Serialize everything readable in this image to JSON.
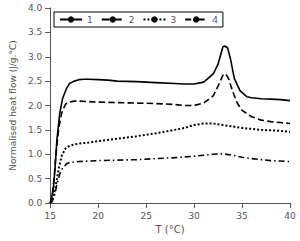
{
  "chart_data": {
    "type": "line",
    "xlabel": "T (°C)",
    "ylabel": "Normalised heat flow (J/g.°C)",
    "xlim": [
      15,
      40
    ],
    "ylim": [
      0,
      4
    ],
    "xticks": [
      15,
      20,
      25,
      30,
      35,
      40
    ],
    "yticks": [
      {
        "value": 0,
        "label": "0.0"
      },
      0.5,
      {
        "value": 1,
        "label": "1.0"
      },
      1.5,
      {
        "value": 2,
        "label": "2.0"
      },
      2.5,
      {
        "value": 3,
        "label": "3.0"
      },
      3.5,
      {
        "value": 4,
        "label": "4.0"
      }
    ],
    "grid": false,
    "legend": "upper left",
    "series": [
      {
        "name": "1",
        "color": "#000000",
        "line_style": "solid",
        "x": [
          15,
          15.3,
          15.5,
          15.7,
          16.0,
          16.3,
          16.7,
          17.0,
          17.5,
          18.0,
          18.5,
          19,
          20,
          21,
          22,
          24,
          26,
          28,
          29,
          30,
          31,
          32,
          32.5,
          33.0,
          33.2,
          33.5,
          33.8,
          34.2,
          34.8,
          35.5,
          36,
          37,
          38,
          39,
          40
        ],
        "values": [
          0.0,
          0.25,
          0.7,
          1.3,
          1.85,
          2.15,
          2.35,
          2.45,
          2.5,
          2.53,
          2.54,
          2.54,
          2.53,
          2.52,
          2.5,
          2.49,
          2.47,
          2.45,
          2.44,
          2.44,
          2.48,
          2.65,
          2.85,
          3.2,
          3.22,
          3.18,
          2.95,
          2.55,
          2.3,
          2.18,
          2.16,
          2.14,
          2.13,
          2.12,
          2.1
        ]
      },
      {
        "name": "2",
        "color": "#000000",
        "line_style": "dashed",
        "x": [
          15,
          15.2,
          15.4,
          15.6,
          15.9,
          16.2,
          16.6,
          17.0,
          17.5,
          18,
          19,
          20,
          22,
          24,
          26,
          28,
          29,
          30,
          31,
          32,
          32.5,
          33.0,
          33.3,
          33.6,
          34.0,
          34.5,
          35,
          36,
          37,
          38,
          39,
          40
        ],
        "values": [
          0.0,
          0.15,
          0.5,
          1.0,
          1.55,
          1.85,
          2.03,
          2.07,
          2.09,
          2.09,
          2.08,
          2.07,
          2.06,
          2.05,
          2.04,
          2.02,
          2.0,
          2.0,
          2.05,
          2.2,
          2.4,
          2.62,
          2.65,
          2.55,
          2.3,
          2.05,
          1.9,
          1.77,
          1.7,
          1.67,
          1.65,
          1.63
        ]
      },
      {
        "name": "3",
        "color": "#000000",
        "line_style": "dotted",
        "x": [
          15,
          15.2,
          15.4,
          15.6,
          15.9,
          16.2,
          16.6,
          17.0,
          17.5,
          18,
          19,
          20,
          22,
          24,
          26,
          28,
          29,
          30,
          31,
          32,
          33,
          34,
          35,
          36,
          37,
          38,
          39,
          40
        ],
        "values": [
          0.0,
          0.05,
          0.18,
          0.38,
          0.72,
          0.97,
          1.12,
          1.17,
          1.2,
          1.22,
          1.24,
          1.27,
          1.32,
          1.37,
          1.43,
          1.5,
          1.54,
          1.6,
          1.63,
          1.63,
          1.6,
          1.57,
          1.54,
          1.52,
          1.5,
          1.49,
          1.48,
          1.46
        ]
      },
      {
        "name": "4",
        "color": "#000000",
        "line_style": "dashdot",
        "x": [
          15,
          15.15,
          15.3,
          15.5,
          15.7,
          16.0,
          16.3,
          16.7,
          17.0,
          17.5,
          18,
          19,
          20,
          22,
          24,
          26,
          28,
          30,
          32,
          33,
          34,
          35,
          36,
          37,
          38,
          39,
          40
        ],
        "values": [
          0.0,
          0.02,
          0.08,
          0.2,
          0.38,
          0.6,
          0.72,
          0.8,
          0.83,
          0.84,
          0.85,
          0.86,
          0.87,
          0.88,
          0.89,
          0.91,
          0.93,
          0.96,
          1.0,
          1.01,
          0.98,
          0.94,
          0.91,
          0.89,
          0.87,
          0.86,
          0.85
        ]
      }
    ]
  }
}
